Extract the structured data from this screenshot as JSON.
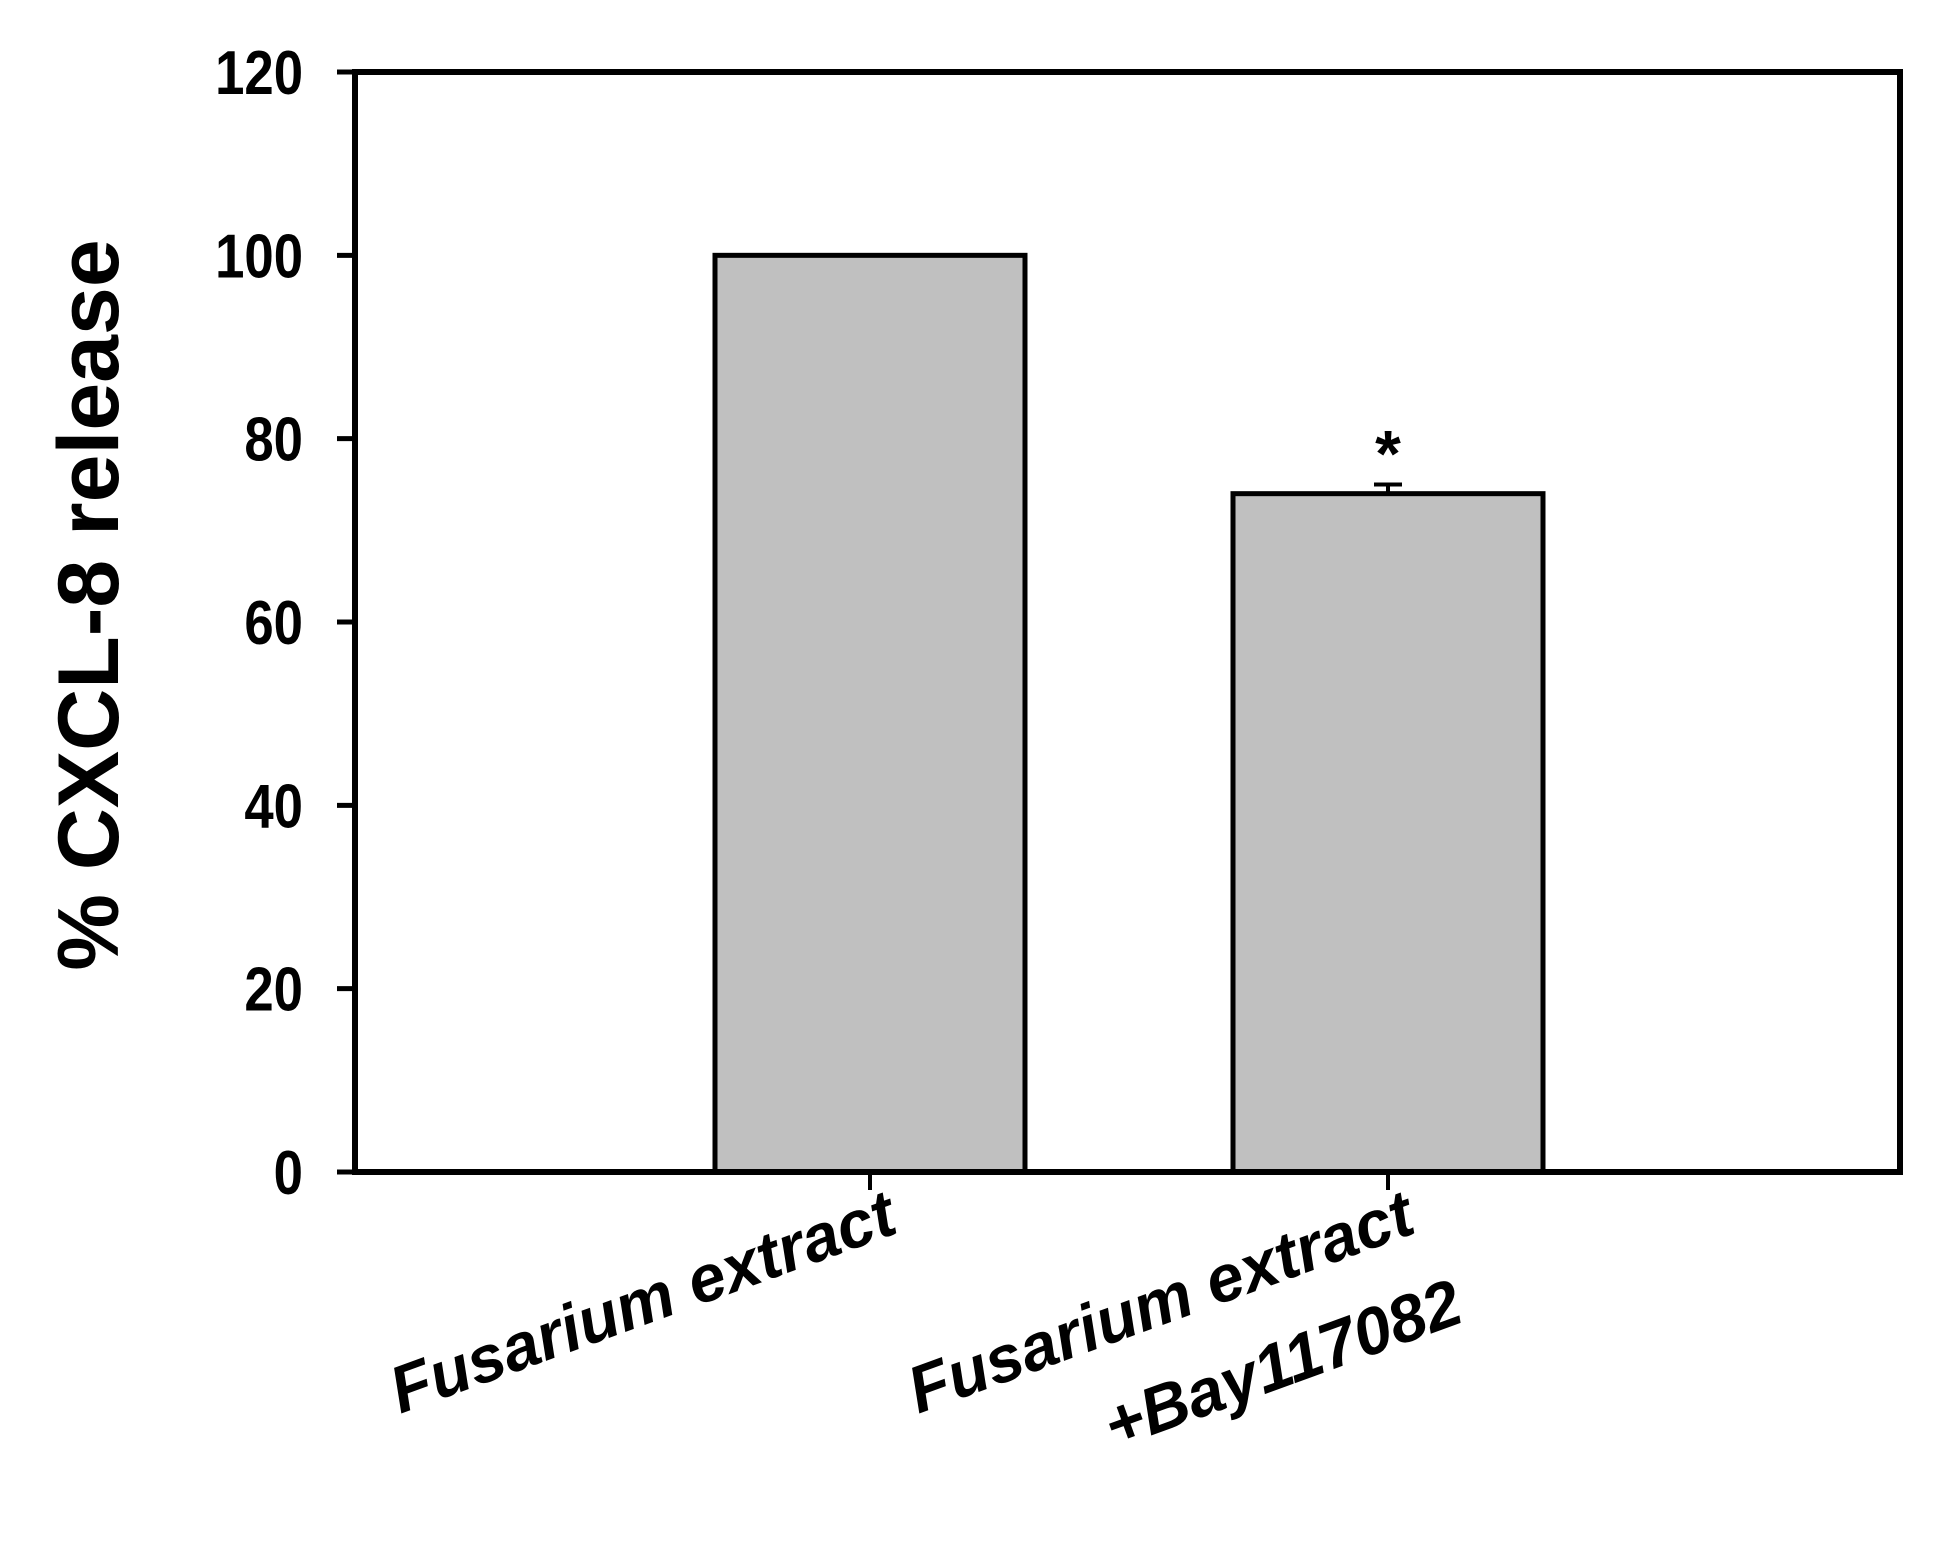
{
  "chart_data": {
    "type": "bar",
    "y_label": "% CXCL-8 release",
    "categories": [
      "Fusarium extract",
      "Fusarium extract\n+Bay117082"
    ],
    "values": [
      100,
      74
    ],
    "errors": [
      null,
      1
    ],
    "annotations": [
      {
        "text": "*",
        "category": 1
      }
    ],
    "color": "#c0c0c0",
    "ylim": [
      0,
      120
    ],
    "yticks": [
      0,
      20,
      40,
      60,
      80,
      100,
      120
    ],
    "grid": false
  }
}
